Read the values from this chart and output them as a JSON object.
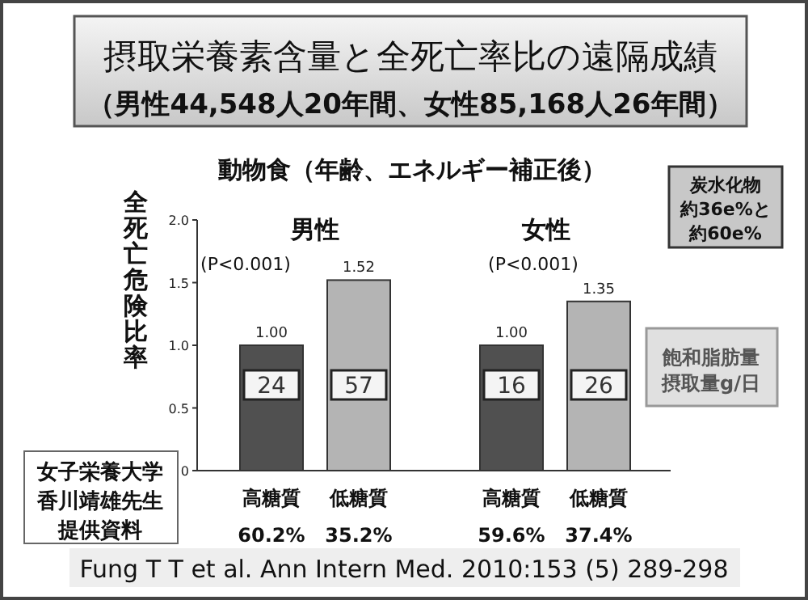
{
  "chart_data": {
    "type": "bar",
    "title": "摂取栄養素含量と全死亡率比の遠隔成績",
    "subtitle": "（男性44,548人20年間、女性85,168人26年間）",
    "ylabel": "全死亡危険比率",
    "categories": [
      "高糖質\n60.2%",
      "低糖質\n35.2%",
      "高糖質\n59.6%",
      "低糖質\n37.4%"
    ],
    "values": [
      1.0,
      1.52,
      1.0,
      1.35
    ],
    "colors": [
      "#505050",
      "#b4b4b4",
      "#505050",
      "#b4b4b4"
    ],
    "value_labels": [
      "1.00",
      "1.52",
      "1.00",
      "1.35"
    ],
    "ylim": [
      0,
      2
    ],
    "yticks": [
      0,
      {
        "value": 0.5,
        "label": "0.5"
      },
      {
        "value": 1,
        "label": "1.0"
      },
      {
        "value": 1.5,
        "label": "1.5"
      },
      {
        "value": 2,
        "label": "2.0"
      }
    ],
    "grid": false,
    "annotations": [
      "24",
      "57",
      "16",
      "26",
      "男性",
      "(P<0.001)",
      "女性",
      "(P<0.001)",
      "動物食（年齢、エネルギー補正後）",
      "炭水化物",
      "約36e%と",
      "約60e%",
      "飽和脂肪量",
      "摂取量g/日",
      "女子栄養大学",
      "香川靖雄先生",
      "提供資料",
      "Fung T T et al. Ann Intern Med. 2010:153 (5) 289-298"
    ]
  }
}
